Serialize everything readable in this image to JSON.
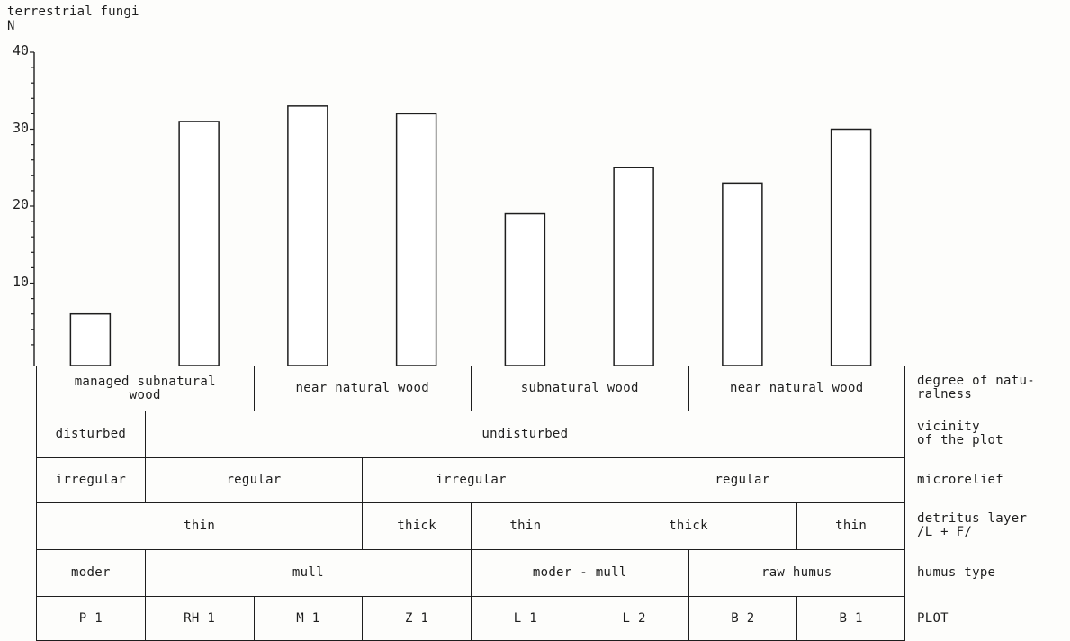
{
  "chart_data": {
    "type": "bar",
    "title": "terrestrial fungi",
    "ylabel": "N",
    "ylim": [
      0,
      40
    ],
    "yticks": [
      10,
      20,
      30,
      40
    ],
    "categories": [
      "P 1",
      "RH 1",
      "M 1",
      "Z 1",
      "L 1",
      "L 2",
      "B 2",
      "B 1"
    ],
    "values": [
      6,
      31,
      33,
      32,
      19,
      25,
      23,
      30
    ],
    "grid": false,
    "bar_fill": "#ffffff",
    "bar_stroke": "#1e1e1e"
  },
  "table": {
    "rows": [
      {
        "label": "degree of natu-\nralness",
        "cells": [
          {
            "text": "managed subnatural\nwood",
            "span": 2
          },
          {
            "text": "near natural wood",
            "span": 2
          },
          {
            "text": "subnatural wood",
            "span": 2
          },
          {
            "text": "near natural wood",
            "span": 2
          }
        ]
      },
      {
        "label": "vicinity\nof the plot",
        "cells": [
          {
            "text": "disturbed",
            "span": 1
          },
          {
            "text": "undisturbed",
            "span": 7
          }
        ]
      },
      {
        "label": "microrelief",
        "cells": [
          {
            "text": "irregular",
            "span": 1
          },
          {
            "text": "regular",
            "span": 2
          },
          {
            "text": "irregular",
            "span": 2
          },
          {
            "text": "regular",
            "span": 3
          }
        ]
      },
      {
        "label": "detritus layer\n/L + F/",
        "cells": [
          {
            "text": "thin",
            "span": 3
          },
          {
            "text": "thick",
            "span": 1
          },
          {
            "text": "thin",
            "span": 1
          },
          {
            "text": "thick",
            "span": 2
          },
          {
            "text": "thin",
            "span": 1
          }
        ]
      },
      {
        "label": "humus type",
        "cells": [
          {
            "text": "moder",
            "span": 1
          },
          {
            "text": "mull",
            "span": 3
          },
          {
            "text": "moder - mull",
            "span": 2
          },
          {
            "text": "raw humus",
            "span": 2
          }
        ]
      },
      {
        "label": "PLOT",
        "cells": [
          {
            "text": "P 1",
            "span": 1
          },
          {
            "text": "RH 1",
            "span": 1
          },
          {
            "text": "M 1",
            "span": 1
          },
          {
            "text": "Z 1",
            "span": 1
          },
          {
            "text": "L 1",
            "span": 1
          },
          {
            "text": "L 2",
            "span": 1
          },
          {
            "text": "B 2",
            "span": 1
          },
          {
            "text": "B 1",
            "span": 1
          }
        ]
      }
    ]
  }
}
